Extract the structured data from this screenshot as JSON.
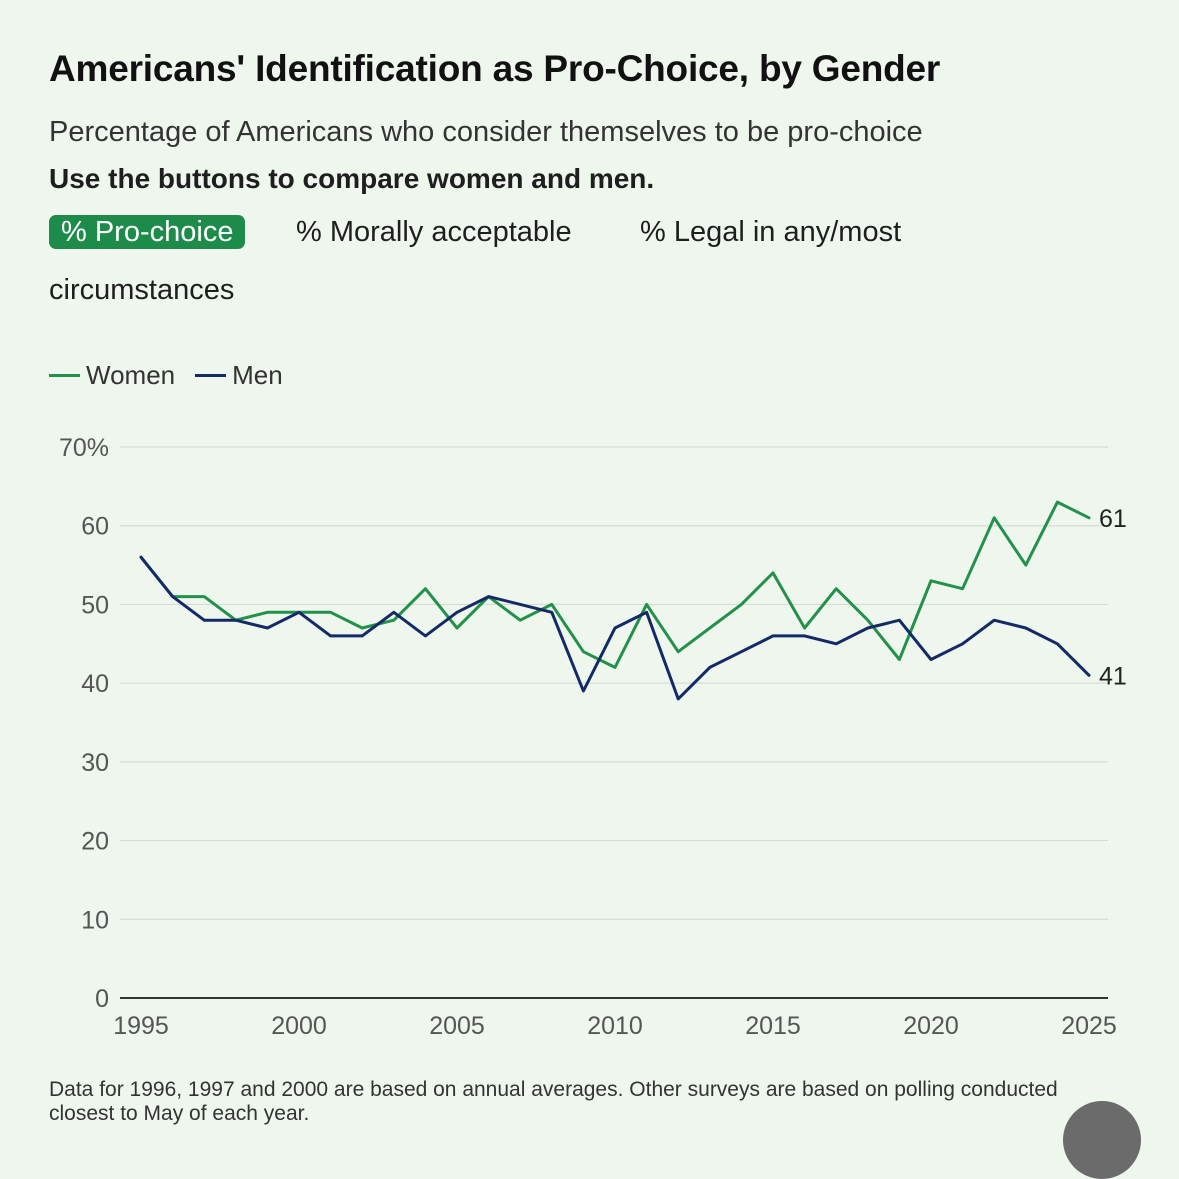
{
  "header": {
    "title": "Americans' Identification as Pro-Choice, by Gender",
    "subtitle": "Percentage of Americans who consider themselves to be pro-choice",
    "instruction": "Use the buttons to compare women and men."
  },
  "buttons": {
    "pro_choice": "% Pro-choice",
    "morally_acceptable": "% Morally acceptable",
    "legal_line1": "% Legal in any/most",
    "legal_line2": "circumstances"
  },
  "legend": {
    "women": "Women",
    "men": "Men"
  },
  "colors": {
    "women": "#24914b",
    "men": "#142a66",
    "accent": "#1d8c4a"
  },
  "chart_data": {
    "type": "line",
    "title": "Americans' Identification as Pro-Choice, by Gender",
    "xlabel": "",
    "ylabel": "",
    "ylim": [
      0,
      70
    ],
    "xlim": [
      1995,
      2025
    ],
    "yticks": [
      "0",
      "10",
      "20",
      "30",
      "40",
      "50",
      "60",
      "70%"
    ],
    "yticks_values": [
      0,
      10,
      20,
      30,
      40,
      50,
      60,
      70
    ],
    "xticks": [
      1995,
      2000,
      2005,
      2010,
      2015,
      2020,
      2025
    ],
    "x": [
      1995,
      1996,
      1997,
      1998,
      1999,
      2000,
      2001,
      2002,
      2003,
      2004,
      2005,
      2006,
      2007,
      2008,
      2009,
      2010,
      2011,
      2012,
      2013,
      2014,
      2015,
      2016,
      2017,
      2018,
      2019,
      2020,
      2021,
      2022,
      2023,
      2024,
      2025
    ],
    "series": [
      {
        "name": "Women",
        "values": [
          56,
          51,
          51,
          48,
          49,
          49,
          49,
          47,
          48,
          52,
          47,
          51,
          48,
          50,
          44,
          42,
          50,
          44,
          47,
          50,
          54,
          47,
          52,
          48,
          43,
          53,
          52,
          61,
          55,
          63,
          61
        ],
        "end_label": "61"
      },
      {
        "name": "Men",
        "values": [
          56,
          51,
          48,
          48,
          47,
          49,
          46,
          46,
          49,
          46,
          49,
          51,
          50,
          49,
          39,
          47,
          49,
          38,
          42,
          44,
          46,
          46,
          45,
          47,
          48,
          43,
          45,
          48,
          47,
          45,
          41
        ],
        "end_label": "41"
      }
    ],
    "legend": "top-left",
    "grid": true
  },
  "footnote": "Data for 1996, 1997 and 2000 are based on annual averages. Other surveys are based on polling conducted closest to May of each year."
}
